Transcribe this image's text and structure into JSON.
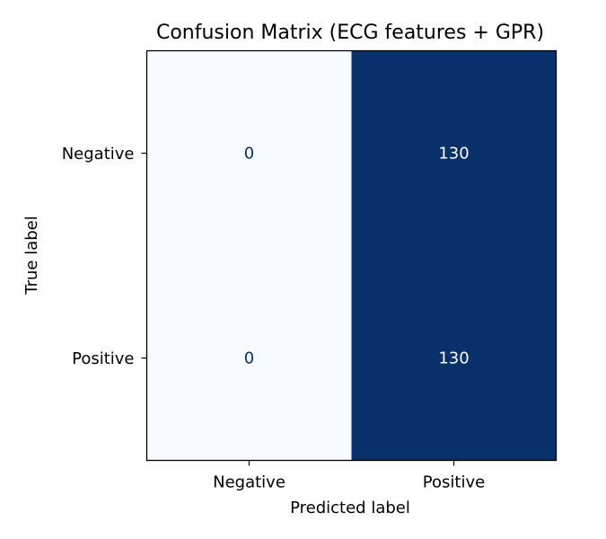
{
  "chart_data": {
    "type": "heatmap",
    "title": "Confusion Matrix (ECG features + GPR)",
    "xlabel": "Predicted label",
    "ylabel": "True label",
    "x_categories": [
      "Negative",
      "Positive"
    ],
    "y_categories": [
      "Negative",
      "Positive"
    ],
    "values": [
      [
        0,
        130
      ],
      [
        0,
        130
      ]
    ],
    "colormap": "Blues",
    "value_range": [
      0,
      130
    ],
    "low_color": "#f7fbff",
    "high_color": "#08306b",
    "low_text_color": "#08306b",
    "high_text_color": "#ffffff",
    "colorbar": false,
    "grid": false
  }
}
